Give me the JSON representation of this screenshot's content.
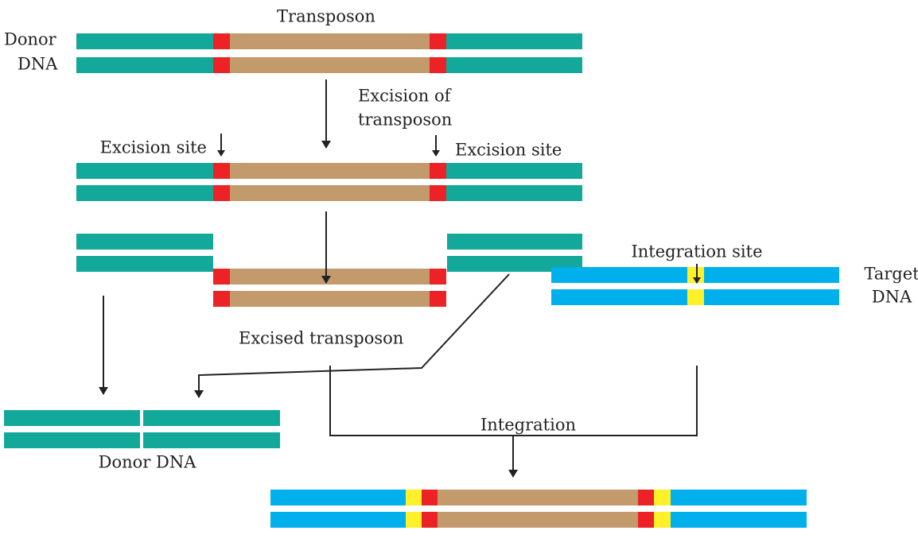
{
  "title": "Transposon",
  "donor_label": [
    "Donor",
    "DNA"
  ],
  "excision_label": [
    "Excision of",
    "transposon"
  ],
  "excision_site_left": "Excision site",
  "excision_site_right": "Excision site",
  "integration_site": "Integration site",
  "target_label": [
    "Target",
    "DNA"
  ],
  "excised_transposon": "Excised transposon",
  "integration": "Integration",
  "donor_dna": "Donor DNA"
}
